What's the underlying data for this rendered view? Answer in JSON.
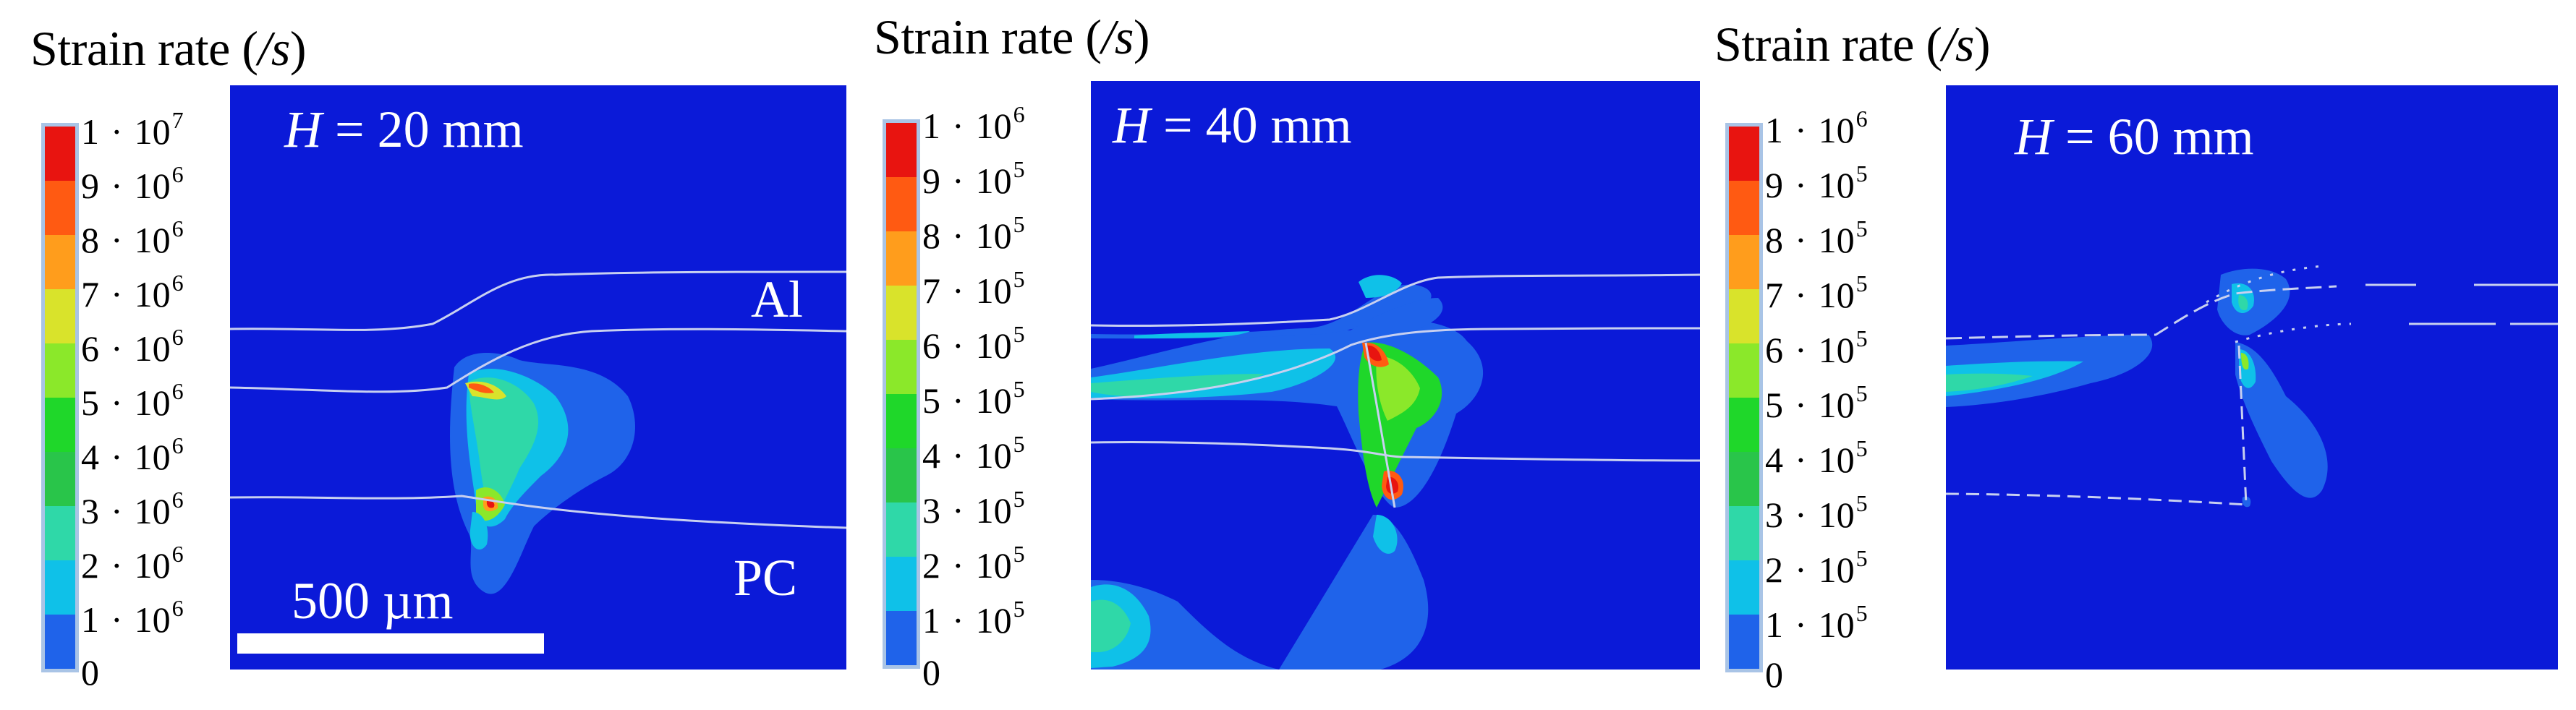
{
  "chart_data": [
    {
      "type": "heatmap",
      "title": "Strain rate (/s)",
      "panel_label": "H = 20 mm",
      "legend": [
        "1 · 10^7",
        "9 · 10^6",
        "8 · 10^6",
        "7 · 10^6",
        "6 · 10^6",
        "5 · 10^6",
        "4 · 10^6",
        "3 · 10^6",
        "2 · 10^6",
        "1 · 10^6",
        "0"
      ],
      "legend_max": 10000000,
      "material_top": "Al",
      "material_bottom": "PC",
      "scale_bar": "500 µm"
    },
    {
      "type": "heatmap",
      "title": "Strain rate (/s)",
      "panel_label": "H = 40 mm",
      "legend": [
        "1 · 10^6",
        "9 · 10^5",
        "8 · 10^5",
        "7 · 10^5",
        "6 · 10^5",
        "5 · 10^5",
        "4 · 10^5",
        "3 · 10^5",
        "2 · 10^5",
        "1 · 10^5",
        "0"
      ],
      "legend_max": 1000000
    },
    {
      "type": "heatmap",
      "title": "Strain rate (/s)",
      "panel_label": "H = 60 mm",
      "legend": [
        "1 · 10^6",
        "9 · 10^5",
        "8 · 10^5",
        "7 · 10^5",
        "6 · 10^5",
        "5 · 10^5",
        "4 · 10^5",
        "3 · 10^5",
        "2 · 10^5",
        "1 · 10^5",
        "0"
      ],
      "legend_max": 1000000
    }
  ],
  "panels": [
    {
      "title_text": "Strain rate (",
      "title_unit": "/s",
      "title_close": ")",
      "h_var": "H",
      "h_value": " = 20 mm",
      "ticks": [
        {
          "base": "1",
          "exp": "7"
        },
        {
          "base": "9",
          "exp": "6"
        },
        {
          "base": "8",
          "exp": "6"
        },
        {
          "base": "7",
          "exp": "6"
        },
        {
          "base": "6",
          "exp": "6"
        },
        {
          "base": "5",
          "exp": "6"
        },
        {
          "base": "4",
          "exp": "6"
        },
        {
          "base": "3",
          "exp": "6"
        },
        {
          "base": "2",
          "exp": "6"
        },
        {
          "base": "1",
          "exp": "6"
        },
        {
          "base": "0",
          "exp": ""
        }
      ],
      "al": "Al",
      "pc": "PC",
      "scale": "500 µm"
    },
    {
      "title_text": "Strain rate (",
      "title_unit": "/s",
      "title_close": ")",
      "h_var": "H",
      "h_value": " = 40 mm",
      "ticks": [
        {
          "base": "1",
          "exp": "6"
        },
        {
          "base": "9",
          "exp": "5"
        },
        {
          "base": "8",
          "exp": "5"
        },
        {
          "base": "7",
          "exp": "5"
        },
        {
          "base": "6",
          "exp": "5"
        },
        {
          "base": "5",
          "exp": "5"
        },
        {
          "base": "4",
          "exp": "5"
        },
        {
          "base": "3",
          "exp": "5"
        },
        {
          "base": "2",
          "exp": "5"
        },
        {
          "base": "1",
          "exp": "5"
        },
        {
          "base": "0",
          "exp": ""
        }
      ]
    },
    {
      "title_text": "Strain rate (",
      "title_unit": "/s",
      "title_close": ")",
      "h_var": "H",
      "h_value": " = 60 mm",
      "ticks": [
        {
          "base": "1",
          "exp": "6"
        },
        {
          "base": "9",
          "exp": "5"
        },
        {
          "base": "8",
          "exp": "5"
        },
        {
          "base": "7",
          "exp": "5"
        },
        {
          "base": "6",
          "exp": "5"
        },
        {
          "base": "5",
          "exp": "5"
        },
        {
          "base": "4",
          "exp": "5"
        },
        {
          "base": "3",
          "exp": "5"
        },
        {
          "base": "2",
          "exp": "5"
        },
        {
          "base": "1",
          "exp": "5"
        },
        {
          "base": "0",
          "exp": ""
        }
      ]
    }
  ],
  "colormap": [
    "#0b1ad8",
    "#1f63ea",
    "#0fc1e8",
    "#2fd8a8",
    "#29c54a",
    "#1fd72a",
    "#8be82a",
    "#d9e32b",
    "#ff9d1c",
    "#ff5a12",
    "#e81410"
  ],
  "dot": "·"
}
